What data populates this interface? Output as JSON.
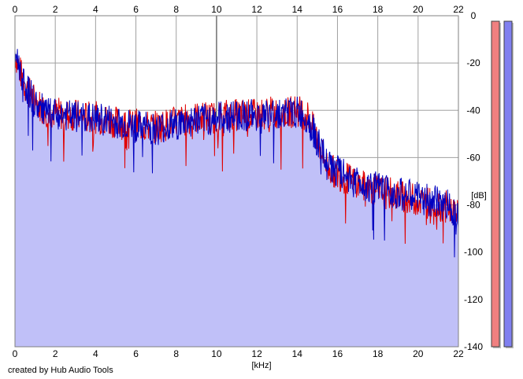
{
  "chart_data": {
    "type": "line",
    "x_unit_label": "[kHz]",
    "y_unit_label": "[dB]",
    "x_ticks": [
      "0",
      "2",
      "4",
      "6",
      "8",
      "10",
      "12",
      "14",
      "16",
      "18",
      "20",
      "22"
    ],
    "y_ticks": [
      "0",
      "-20",
      "-40",
      "-60",
      "-80",
      "-100",
      "-120",
      "-140"
    ],
    "xlim": [
      0,
      22
    ],
    "ylim": [
      -140,
      0
    ],
    "grid": true,
    "series": [
      {
        "color": "#e00000",
        "x": [
          0,
          0.2,
          0.5,
          1,
          1.5,
          2,
          2.5,
          3,
          3.5,
          4,
          4.5,
          5,
          5.5,
          6,
          6.5,
          7,
          7.5,
          8,
          8.5,
          9,
          9.5,
          10,
          10.5,
          11,
          11.5,
          12,
          12.5,
          13,
          13.5,
          14,
          14.5,
          15,
          15.5,
          16,
          16.5,
          17,
          17.5,
          18,
          18.5,
          19,
          19.5,
          20,
          20.5,
          21,
          21.5,
          22
        ],
        "values": [
          -16,
          -22,
          -30,
          -36,
          -40,
          -41,
          -42,
          -42,
          -43,
          -43,
          -44,
          -45,
          -46,
          -46,
          -47,
          -47,
          -46,
          -45,
          -44,
          -43,
          -43,
          -43,
          -42,
          -42,
          -42,
          -42,
          -41,
          -41,
          -41,
          -40,
          -42,
          -52,
          -64,
          -67,
          -69,
          -71,
          -73,
          -74,
          -75,
          -76,
          -77,
          -78,
          -79,
          -80,
          -81,
          -85
        ]
      },
      {
        "color": "#0000c0",
        "x": [
          0,
          0.2,
          0.5,
          1,
          1.5,
          2,
          2.5,
          3,
          3.5,
          4,
          4.5,
          5,
          5.5,
          6,
          6.5,
          7,
          7.5,
          8,
          8.5,
          9,
          9.5,
          10,
          10.5,
          11,
          11.5,
          12,
          12.5,
          13,
          13.5,
          14,
          14.5,
          15,
          15.5,
          16,
          16.5,
          17,
          17.5,
          18,
          18.5,
          19,
          19.5,
          20,
          20.5,
          21,
          21.5,
          22
        ],
        "values": [
          -15,
          -21,
          -29,
          -37,
          -41,
          -42,
          -42,
          -43,
          -43,
          -44,
          -44,
          -45,
          -46,
          -47,
          -47,
          -48,
          -47,
          -46,
          -45,
          -44,
          -44,
          -43,
          -43,
          -42,
          -42,
          -42,
          -42,
          -41,
          -41,
          -41,
          -43,
          -53,
          -63,
          -66,
          -68,
          -70,
          -72,
          -73,
          -74,
          -75,
          -76,
          -77,
          -78,
          -79,
          -80,
          -84
        ]
      }
    ]
  },
  "level_meters": [
    {
      "color": "#f08080",
      "level": 1.0
    },
    {
      "color": "#8080f0",
      "level": 1.0
    }
  ],
  "credit": "created by Hub Audio Tools"
}
